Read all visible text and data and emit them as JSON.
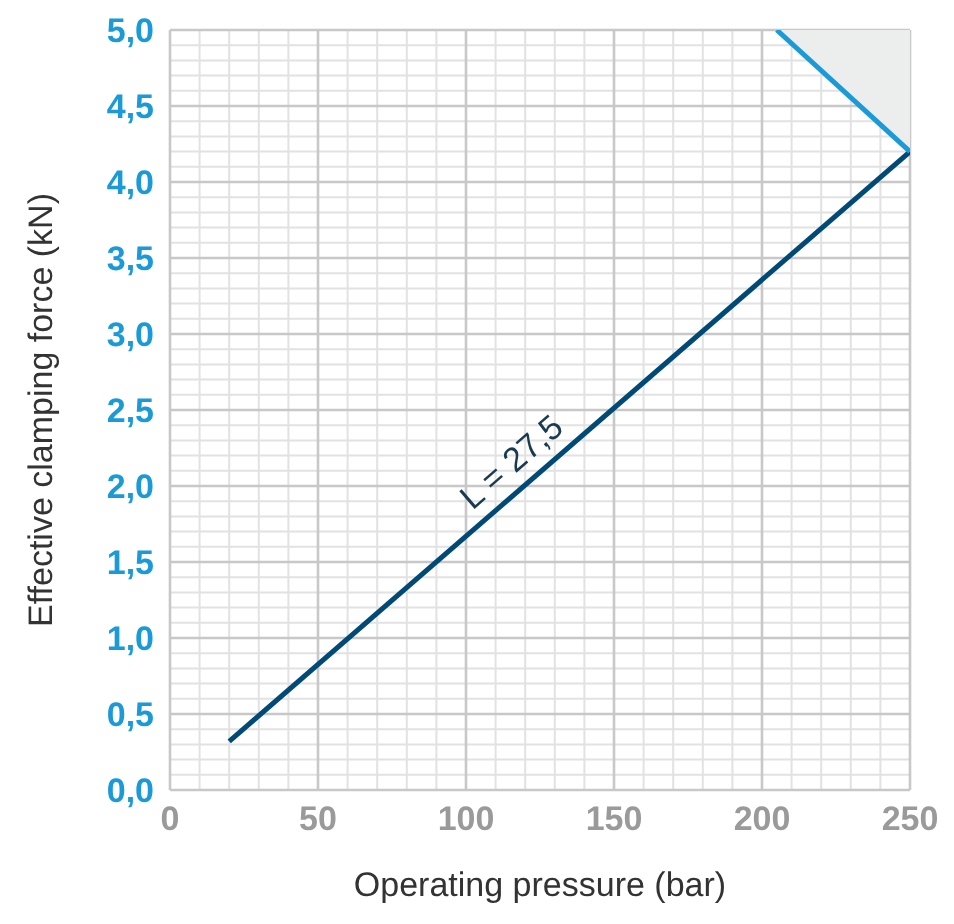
{
  "chart_data": {
    "type": "line",
    "xlabel": "Operating pressure (bar)",
    "ylabel": "Effective clamping force (kN)",
    "xlim": [
      0,
      250
    ],
    "xticks": [
      0,
      50,
      100,
      150,
      200,
      250
    ],
    "ylim": [
      0,
      5
    ],
    "yticks": [
      {
        "value": 0,
        "label": "0,0"
      },
      {
        "value": 0.5,
        "label": "0,5"
      },
      {
        "value": 1,
        "label": "1,0"
      },
      {
        "value": 1.5,
        "label": "1,5"
      },
      {
        "value": 2,
        "label": "2,0"
      },
      {
        "value": 2.5,
        "label": "2,5"
      },
      {
        "value": 3,
        "label": "3,0"
      },
      {
        "value": 3.5,
        "label": "3,5"
      },
      {
        "value": 4,
        "label": "4,0"
      },
      {
        "value": 4.5,
        "label": "4,5"
      },
      {
        "value": 5,
        "label": "5,0"
      }
    ],
    "grid": true,
    "line_style": "solid",
    "marker": "none",
    "series": [
      {
        "color": "#004a75",
        "x": [
          20,
          250
        ],
        "values": [
          0.32,
          4.2
        ]
      },
      {
        "color": "#1a9ad6",
        "x": [
          205,
          250
        ],
        "values": [
          5,
          4.2
        ],
        "lower": [
          5,
          4.2
        ],
        "upper": [
          5,
          5
        ]
      }
    ],
    "annotations": [
      "L = 27,5"
    ]
  }
}
